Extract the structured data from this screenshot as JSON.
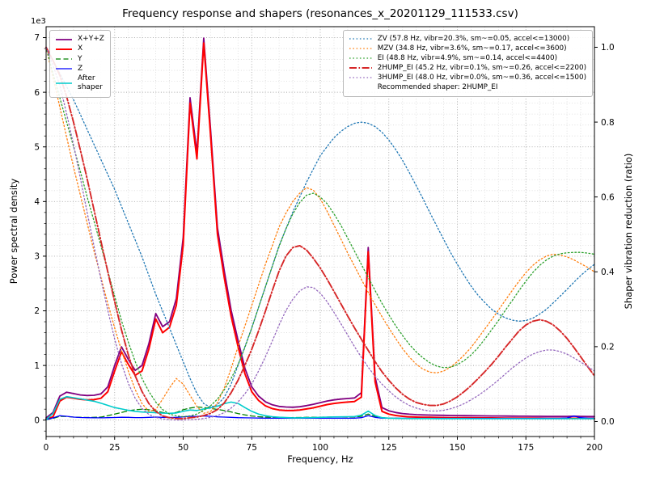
{
  "chart_data": {
    "type": "line",
    "title": "Frequency response and shapers (resonances_x_20201129_111533.csv)",
    "xlabel": "Frequency, Hz",
    "ylabel_left": "Power spectral density",
    "ylabel_right": "Shaper vibration reduction (ratio)",
    "y_left_multiplier": "1e3",
    "xlim": [
      0,
      200
    ],
    "ylim_left": [
      -300,
      7200
    ],
    "ylim_right": [
      -0.04,
      1.055
    ],
    "x_ticks": [
      0,
      25,
      50,
      75,
      100,
      125,
      150,
      175,
      200
    ],
    "y_left_ticks": [
      0,
      1,
      2,
      3,
      4,
      5,
      6,
      7
    ],
    "y_right_ticks": [
      0.0,
      0.2,
      0.4,
      0.6,
      0.8,
      1.0
    ],
    "x_minor_step": 5,
    "y_left_minor_step": 200,
    "grid": "both",
    "recommendation": "Recommended shaper: 2HUMP_EI",
    "x": [
      0,
      2.5,
      5,
      7.5,
      10,
      12.5,
      15,
      17.5,
      20,
      22.5,
      25,
      27.5,
      30,
      32.5,
      35,
      37.5,
      40,
      42.5,
      45,
      47.5,
      50,
      52.5,
      55,
      57.5,
      60,
      62.5,
      65,
      67.5,
      70,
      72.5,
      75,
      77.5,
      80,
      82.5,
      85,
      87.5,
      90,
      92.5,
      95,
      97.5,
      100,
      102.5,
      105,
      107.5,
      110,
      112.5,
      115,
      117.5,
      120,
      122.5,
      125,
      127.5,
      130,
      132.5,
      135,
      137.5,
      140,
      142.5,
      145,
      147.5,
      150,
      152.5,
      155,
      157.5,
      160,
      162.5,
      165,
      167.5,
      170,
      172.5,
      175,
      177.5,
      180,
      182.5,
      185,
      187.5,
      190,
      192.5,
      195,
      197.5,
      200
    ],
    "psd_series": [
      {
        "name": "X+Y+Z",
        "label": "X+Y+Z",
        "color": "#800080",
        "style": "solid",
        "lw": 1.8,
        "axis": "left",
        "values": [
          40,
          140,
          440,
          510,
          485,
          460,
          450,
          455,
          480,
          610,
          1000,
          1340,
          1110,
          910,
          1000,
          1400,
          1950,
          1710,
          1800,
          2220,
          3340,
          5900,
          4890,
          6990,
          5310,
          3520,
          2720,
          2010,
          1460,
          950,
          610,
          440,
          335,
          280,
          250,
          240,
          235,
          245,
          265,
          290,
          320,
          350,
          370,
          385,
          395,
          405,
          500,
          3160,
          790,
          230,
          170,
          140,
          120,
          108,
          100,
          95,
          92,
          89,
          87,
          85,
          83,
          81,
          80,
          78,
          77,
          76,
          75,
          74,
          73,
          72,
          71,
          70,
          70,
          69,
          68,
          68,
          67,
          72,
          68,
          66,
          65
        ]
      },
      {
        "name": "X",
        "label": "X",
        "color": "#ff0000",
        "style": "solid",
        "lw": 2.0,
        "axis": "left",
        "values": [
          20,
          60,
          350,
          420,
          400,
          380,
          370,
          375,
          400,
          520,
          900,
          1250,
          1020,
          820,
          900,
          1300,
          1850,
          1600,
          1700,
          2100,
          3200,
          5800,
          4780,
          6900,
          5200,
          3400,
          2600,
          1900,
          1350,
          850,
          520,
          360,
          260,
          210,
          185,
          175,
          175,
          185,
          205,
          225,
          255,
          285,
          305,
          320,
          330,
          340,
          420,
          3080,
          700,
          160,
          110,
          85,
          70,
          60,
          55,
          50,
          50,
          48,
          46,
          45,
          44,
          43,
          42,
          41,
          40,
          40,
          39,
          38,
          38,
          37,
          37,
          36,
          36,
          35,
          35,
          34,
          34,
          33,
          33,
          32,
          32
        ]
      },
      {
        "name": "Y",
        "label": "Y",
        "color": "#008000",
        "style": "dashed",
        "lw": 1.3,
        "axis": "left",
        "values": [
          10,
          30,
          70,
          65,
          55,
          50,
          48,
          50,
          55,
          80,
          110,
          140,
          170,
          190,
          200,
          190,
          170,
          140,
          120,
          140,
          190,
          220,
          240,
          230,
          215,
          195,
          175,
          150,
          120,
          95,
          75,
          62,
          55,
          50,
          48,
          46,
          46,
          47,
          50,
          52,
          54,
          55,
          56,
          56,
          57,
          58,
          70,
          110,
          70,
          45,
          38,
          34,
          32,
          31,
          31,
          30,
          30,
          30,
          29,
          29,
          29,
          29,
          28,
          28,
          28,
          28,
          28,
          28,
          28,
          28,
          28,
          28,
          28,
          28,
          28,
          28,
          28,
          28,
          28,
          28,
          28
        ]
      },
      {
        "name": "Z",
        "label": "Z",
        "color": "#0000ff",
        "style": "solid",
        "lw": 1.3,
        "axis": "left",
        "values": [
          10,
          40,
          80,
          70,
          55,
          48,
          44,
          42,
          42,
          44,
          48,
          52,
          50,
          46,
          46,
          50,
          55,
          50,
          48,
          50,
          60,
          70,
          68,
          75,
          70,
          60,
          55,
          50,
          45,
          42,
          40,
          38,
          36,
          35,
          35,
          34,
          34,
          34,
          34,
          34,
          34,
          34,
          35,
          35,
          35,
          36,
          45,
          80,
          50,
          35,
          34,
          34,
          34,
          33,
          33,
          33,
          33,
          33,
          33,
          33,
          33,
          33,
          33,
          33,
          33,
          33,
          33,
          33,
          33,
          33,
          33,
          33,
          34,
          34,
          35,
          36,
          40,
          75,
          45,
          36,
          34
        ]
      },
      {
        "name": "After shaper",
        "label": "After\nshaper",
        "color": "#00cccc",
        "style": "solid",
        "lw": 1.6,
        "axis": "left",
        "values": [
          10,
          120,
          380,
          430,
          410,
          390,
          365,
          345,
          310,
          270,
          230,
          205,
          180,
          160,
          148,
          142,
          135,
          128,
          124,
          130,
          160,
          185,
          175,
          205,
          225,
          255,
          300,
          330,
          305,
          230,
          160,
          110,
          80,
          62,
          52,
          46,
          42,
          42,
          44,
          46,
          50,
          55,
          58,
          60,
          62,
          65,
          90,
          165,
          85,
          45,
          36,
          32,
          30,
          29,
          28,
          28,
          28,
          27,
          27,
          27,
          27,
          27,
          26,
          26,
          26,
          26,
          26,
          26,
          26,
          26,
          26,
          26,
          26,
          26,
          26,
          26,
          26,
          26,
          26,
          26,
          26
        ]
      }
    ],
    "shaper_series": [
      {
        "name": "ZV",
        "label": "ZV (57.8 Hz, vibr=20.3%, sm~=0.05, accel<=13000)",
        "color": "#1f77b4",
        "style": "dotted",
        "lw": 1.3,
        "axis": "right",
        "values": [
          1.0,
          0.965,
          0.93,
          0.895,
          0.86,
          0.82,
          0.78,
          0.74,
          0.7,
          0.66,
          0.62,
          0.575,
          0.53,
          0.485,
          0.44,
          0.39,
          0.34,
          0.295,
          0.25,
          0.205,
          0.16,
          0.115,
          0.075,
          0.048,
          0.038,
          0.045,
          0.065,
          0.1,
          0.15,
          0.2,
          0.25,
          0.305,
          0.36,
          0.415,
          0.47,
          0.515,
          0.56,
          0.6,
          0.64,
          0.675,
          0.71,
          0.735,
          0.758,
          0.775,
          0.788,
          0.797,
          0.8,
          0.797,
          0.788,
          0.773,
          0.752,
          0.727,
          0.698,
          0.665,
          0.63,
          0.595,
          0.558,
          0.522,
          0.487,
          0.452,
          0.42,
          0.39,
          0.362,
          0.338,
          0.318,
          0.3,
          0.287,
          0.277,
          0.271,
          0.268,
          0.27,
          0.276,
          0.287,
          0.3,
          0.317,
          0.335,
          0.353,
          0.372,
          0.39,
          0.406,
          0.42
        ]
      },
      {
        "name": "MZV",
        "label": "MZV (34.8 Hz, vibr=3.6%, sm~=0.17, accel<=3600)",
        "color": "#ff7f0e",
        "style": "dotted",
        "lw": 1.3,
        "axis": "right",
        "values": [
          1.0,
          0.92,
          0.84,
          0.76,
          0.68,
          0.605,
          0.53,
          0.455,
          0.385,
          0.315,
          0.25,
          0.19,
          0.135,
          0.085,
          0.048,
          0.027,
          0.032,
          0.06,
          0.09,
          0.115,
          0.1,
          0.07,
          0.04,
          0.022,
          0.027,
          0.05,
          0.09,
          0.142,
          0.2,
          0.255,
          0.31,
          0.365,
          0.42,
          0.47,
          0.52,
          0.557,
          0.588,
          0.61,
          0.625,
          0.618,
          0.595,
          0.562,
          0.525,
          0.488,
          0.45,
          0.415,
          0.38,
          0.345,
          0.312,
          0.28,
          0.25,
          0.222,
          0.195,
          0.172,
          0.153,
          0.14,
          0.132,
          0.13,
          0.135,
          0.145,
          0.16,
          0.178,
          0.198,
          0.222,
          0.247,
          0.272,
          0.298,
          0.324,
          0.35,
          0.375,
          0.398,
          0.417,
          0.432,
          0.442,
          0.447,
          0.445,
          0.44,
          0.432,
          0.422,
          0.412,
          0.4
        ]
      },
      {
        "name": "EI",
        "label": "EI (48.8 Hz, vibr=4.9%, sm~=0.14, accel<=4400)",
        "color": "#2ca02c",
        "style": "dotted",
        "lw": 1.3,
        "axis": "right",
        "values": [
          1.0,
          0.93,
          0.865,
          0.8,
          0.735,
          0.668,
          0.6,
          0.535,
          0.47,
          0.402,
          0.335,
          0.27,
          0.212,
          0.16,
          0.115,
          0.08,
          0.052,
          0.032,
          0.02,
          0.015,
          0.013,
          0.015,
          0.02,
          0.03,
          0.042,
          0.06,
          0.085,
          0.115,
          0.152,
          0.198,
          0.25,
          0.305,
          0.36,
          0.415,
          0.468,
          0.515,
          0.555,
          0.585,
          0.605,
          0.61,
          0.6,
          0.582,
          0.555,
          0.525,
          0.49,
          0.455,
          0.42,
          0.385,
          0.35,
          0.316,
          0.285,
          0.256,
          0.23,
          0.206,
          0.186,
          0.17,
          0.157,
          0.148,
          0.144,
          0.145,
          0.152,
          0.163,
          0.178,
          0.197,
          0.22,
          0.245,
          0.27,
          0.297,
          0.323,
          0.35,
          0.375,
          0.398,
          0.417,
          0.432,
          0.442,
          0.448,
          0.451,
          0.452,
          0.452,
          0.45,
          0.447
        ]
      },
      {
        "name": "2HUMP_EI",
        "label": "2HUMP_EI (45.2 Hz, vibr=0.1%, sm~=0.26, accel<=2200)",
        "color": "#d62728",
        "style": "dashdot",
        "lw": 1.9,
        "axis": "right",
        "values": [
          1.0,
          0.965,
          0.925,
          0.868,
          0.8,
          0.725,
          0.648,
          0.565,
          0.482,
          0.4,
          0.32,
          0.245,
          0.178,
          0.122,
          0.08,
          0.048,
          0.027,
          0.015,
          0.01,
          0.008,
          0.008,
          0.01,
          0.012,
          0.016,
          0.022,
          0.032,
          0.05,
          0.077,
          0.11,
          0.15,
          0.193,
          0.242,
          0.295,
          0.35,
          0.402,
          0.442,
          0.465,
          0.47,
          0.458,
          0.436,
          0.41,
          0.38,
          0.348,
          0.315,
          0.282,
          0.25,
          0.22,
          0.19,
          0.16,
          0.133,
          0.11,
          0.09,
          0.073,
          0.06,
          0.051,
          0.046,
          0.043,
          0.043,
          0.047,
          0.055,
          0.066,
          0.08,
          0.096,
          0.114,
          0.133,
          0.153,
          0.175,
          0.198,
          0.22,
          0.242,
          0.258,
          0.268,
          0.272,
          0.268,
          0.258,
          0.242,
          0.222,
          0.198,
          0.173,
          0.147,
          0.122
        ]
      },
      {
        "name": "3HUMP_EI",
        "label": "3HUMP_EI (48.0 Hz, vibr=0.0%, sm~=0.36, accel<=1500)",
        "color": "#9467bd",
        "style": "dotted",
        "lw": 1.3,
        "axis": "right",
        "values": [
          1.0,
          0.952,
          0.898,
          0.822,
          0.74,
          0.65,
          0.558,
          0.468,
          0.38,
          0.297,
          0.22,
          0.155,
          0.102,
          0.062,
          0.035,
          0.019,
          0.011,
          0.007,
          0.005,
          0.004,
          0.004,
          0.005,
          0.006,
          0.008,
          0.011,
          0.016,
          0.024,
          0.036,
          0.052,
          0.074,
          0.1,
          0.135,
          0.173,
          0.215,
          0.258,
          0.297,
          0.327,
          0.349,
          0.36,
          0.358,
          0.343,
          0.32,
          0.292,
          0.262,
          0.231,
          0.2,
          0.172,
          0.145,
          0.121,
          0.1,
          0.082,
          0.066,
          0.053,
          0.043,
          0.036,
          0.031,
          0.028,
          0.028,
          0.03,
          0.034,
          0.04,
          0.048,
          0.058,
          0.069,
          0.082,
          0.096,
          0.111,
          0.127,
          0.143,
          0.157,
          0.17,
          0.18,
          0.187,
          0.191,
          0.191,
          0.187,
          0.18,
          0.17,
          0.159,
          0.147,
          0.135
        ]
      }
    ]
  }
}
